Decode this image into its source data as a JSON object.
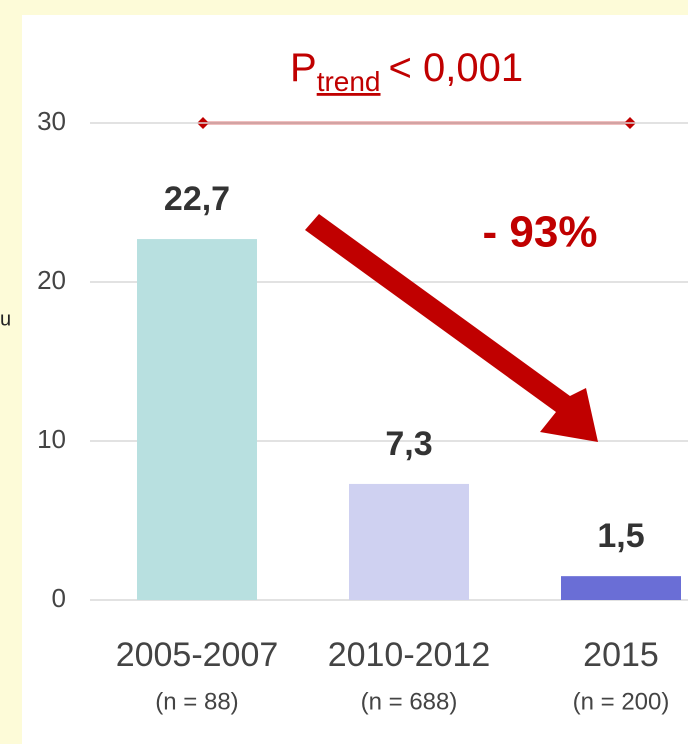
{
  "chart_data": {
    "type": "bar",
    "y_label": "u",
    "categories": [
      "2005-2007",
      "2010-2012",
      "2015"
    ],
    "category_notes": [
      "(n = 88)",
      "(n = 688)",
      "(n = 200)"
    ],
    "values": [
      22.7,
      7.3,
      1.5
    ],
    "value_labels": [
      "22,7",
      "7,3",
      "1,5"
    ],
    "colors": [
      "#b8e0e0",
      "#cfd1f1",
      "#6a6ed6"
    ],
    "ylim": [
      0,
      30
    ],
    "yticks": [
      0,
      10,
      20,
      30
    ],
    "grid": true,
    "annotations": {
      "p_trend": {
        "main": "P",
        "sub": "trend",
        "rest": "< 0,001"
      },
      "change": "- 93%"
    }
  }
}
